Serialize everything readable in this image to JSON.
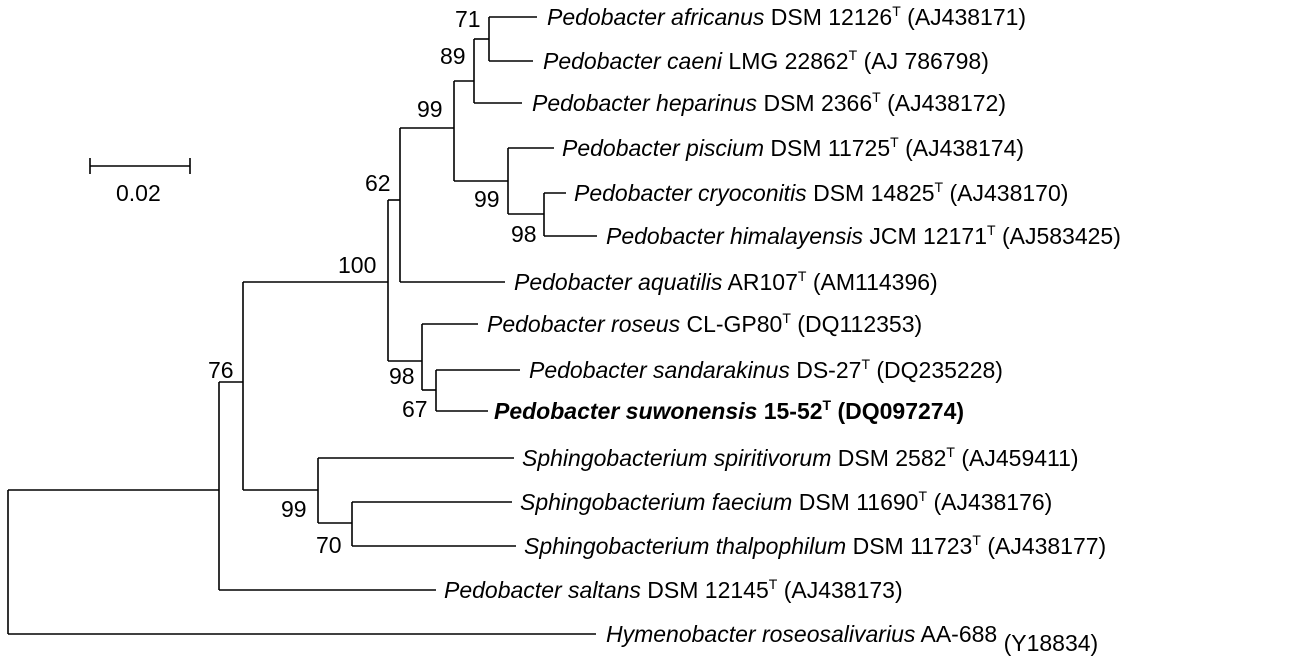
{
  "scale_bar": {
    "label": "0.02"
  },
  "taxa": [
    {
      "genus": "Pedobacter africanus",
      "strain": "DSM 12126",
      "type_mark": "T",
      "accession": "(AJ438171)",
      "bold": false
    },
    {
      "genus": "Pedobacter caeni",
      "strain": "LMG 22862",
      "type_mark": "T",
      "accession": "(AJ 786798)",
      "bold": false
    },
    {
      "genus": "Pedobacter heparinus",
      "strain": "DSM 2366",
      "type_mark": "T",
      "accession": "(AJ438172)",
      "bold": false
    },
    {
      "genus": "Pedobacter piscium",
      "strain": "DSM 11725",
      "type_mark": "T",
      "accession": "(AJ438174)",
      "bold": false
    },
    {
      "genus": "Pedobacter cryoconitis",
      "strain": "DSM 14825",
      "type_mark": "T",
      "accession": "(AJ438170)",
      "bold": false
    },
    {
      "genus": "Pedobacter himalayensis",
      "strain": "JCM 12171",
      "type_mark": "T",
      "accession": "(AJ583425)",
      "bold": false
    },
    {
      "genus": "Pedobacter aquatilis",
      "strain": "AR107",
      "type_mark": "T",
      "accession": "(AM114396)",
      "bold": false
    },
    {
      "genus": "Pedobacter roseus",
      "strain": "CL-GP80",
      "type_mark": "T",
      "accession": "(DQ112353)",
      "bold": false
    },
    {
      "genus": "Pedobacter sandarakinus",
      "strain": "DS-27",
      "type_mark": "T",
      "accession": "(DQ235228)",
      "bold": false
    },
    {
      "genus": "Pedobacter suwonensis",
      "strain": "15-52",
      "type_mark": "T",
      "accession": "(DQ097274)",
      "bold": true
    },
    {
      "genus": "Sphingobacterium spiritivorum",
      "strain": "DSM 2582",
      "type_mark": "T",
      "accession": "(AJ459411)",
      "bold": false
    },
    {
      "genus": "Sphingobacterium faecium",
      "strain": "DSM 11690",
      "type_mark": "T",
      "accession": "(AJ438176)",
      "bold": false
    },
    {
      "genus": "Sphingobacterium thalpophilum",
      "strain": "DSM 11723",
      "type_mark": "T",
      "accession": "(AJ438177)",
      "bold": false
    },
    {
      "genus": "Pedobacter saltans",
      "strain": "DSM 12145",
      "type_mark": "T",
      "accession": "(AJ438173)",
      "bold": false
    },
    {
      "genus": "Hymenobacter roseosalivarius",
      "strain": "AA-688",
      "type_mark": "",
      "accession": "(Y18834)",
      "bold": false
    }
  ],
  "bootstrap_values": [
    "71",
    "89",
    "99",
    "99",
    "98",
    "62",
    "100",
    "98",
    "67",
    "76",
    "99",
    "70"
  ]
}
